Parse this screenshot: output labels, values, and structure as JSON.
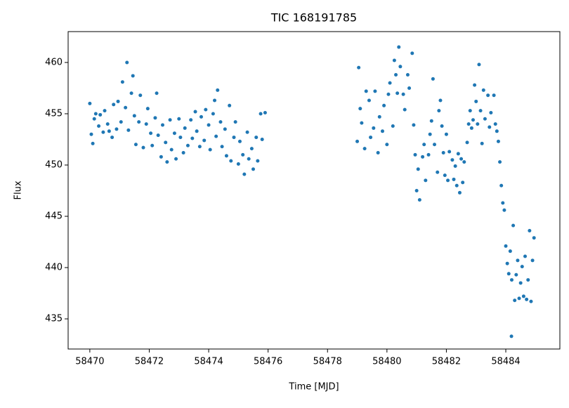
{
  "chart_data": {
    "type": "scatter",
    "title": "TIC 168191785",
    "x_label": "Time [MJD]",
    "y_label": "Flux",
    "color": "#1f77b4",
    "x": [
      58470.0,
      58470.05,
      58470.1,
      58470.15,
      58470.2,
      58470.3,
      58470.35,
      58470.45,
      58470.5,
      58470.6,
      58470.65,
      58470.75,
      58470.8,
      58470.9,
      58470.95,
      58471.05,
      58471.1,
      58471.2,
      58471.25,
      58471.3,
      58471.4,
      58471.45,
      58471.5,
      58471.55,
      58471.65,
      58471.7,
      58471.8,
      58471.9,
      58471.95,
      58472.05,
      58472.1,
      58472.2,
      58472.25,
      58472.3,
      58472.4,
      58472.45,
      58472.55,
      58472.6,
      58472.7,
      58472.75,
      58472.85,
      58472.9,
      58473.0,
      58473.05,
      58473.15,
      58473.2,
      58473.3,
      58473.4,
      58473.45,
      58473.55,
      58473.6,
      58473.7,
      58473.75,
      58473.85,
      58473.9,
      58474.0,
      58474.05,
      58474.15,
      58474.2,
      58474.25,
      58474.3,
      58474.4,
      58474.45,
      58474.55,
      58474.6,
      58474.7,
      58474.75,
      58474.85,
      58474.9,
      58475.0,
      58475.05,
      58475.15,
      58475.2,
      58475.3,
      58475.35,
      58475.45,
      58475.5,
      58475.6,
      58475.65,
      58475.75,
      58475.8,
      58475.9,
      58479.0,
      58479.05,
      58479.1,
      58479.15,
      58479.25,
      58479.3,
      58479.4,
      58479.45,
      58479.55,
      58479.6,
      58479.7,
      58479.75,
      58479.85,
      58479.9,
      58480.0,
      58480.05,
      58480.1,
      58480.2,
      58480.25,
      58480.3,
      58480.35,
      58480.4,
      58480.45,
      58480.55,
      58480.6,
      58480.7,
      58480.75,
      58480.85,
      58480.9,
      58480.95,
      58481.0,
      58481.05,
      58481.1,
      58481.2,
      58481.25,
      58481.3,
      58481.4,
      58481.45,
      58481.5,
      58481.55,
      58481.6,
      58481.7,
      58481.75,
      58481.8,
      58481.85,
      58481.9,
      58481.95,
      58482.0,
      58482.05,
      58482.1,
      58482.2,
      58482.25,
      58482.3,
      58482.35,
      58482.4,
      58482.45,
      58482.5,
      58482.55,
      58482.6,
      58482.7,
      58482.75,
      58482.8,
      58482.85,
      58482.9,
      58482.95,
      58483.0,
      58483.05,
      58483.1,
      58483.15,
      58483.2,
      58483.25,
      58483.3,
      58483.4,
      58483.45,
      58483.5,
      58483.6,
      58483.65,
      58483.7,
      58483.75,
      58483.8,
      58483.85,
      58483.9,
      58483.95,
      58484.0,
      58484.05,
      58484.1,
      58484.15,
      58484.2,
      58484.25,
      58484.3,
      58484.35,
      58484.4,
      58484.45,
      58484.5,
      58484.55,
      58484.6,
      58484.65,
      58484.7,
      58484.75,
      58484.8,
      58484.85,
      58484.9,
      58484.95,
      58484.19
    ],
    "values": [
      456.0,
      453.0,
      452.1,
      454.5,
      455.0,
      453.8,
      454.9,
      453.2,
      455.3,
      454.0,
      453.3,
      452.7,
      455.9,
      453.5,
      456.2,
      454.2,
      458.1,
      455.6,
      460.0,
      453.4,
      457.0,
      458.7,
      454.8,
      452.0,
      454.2,
      456.8,
      451.7,
      454.0,
      455.5,
      453.1,
      451.9,
      454.6,
      457.0,
      452.9,
      450.8,
      453.9,
      452.2,
      450.3,
      454.4,
      451.5,
      453.1,
      450.6,
      454.5,
      452.7,
      451.2,
      453.6,
      451.9,
      454.4,
      452.6,
      455.2,
      453.3,
      451.8,
      454.7,
      452.4,
      455.4,
      453.9,
      451.5,
      455.0,
      456.3,
      452.8,
      457.3,
      454.2,
      451.8,
      453.5,
      450.9,
      455.8,
      450.4,
      452.7,
      454.2,
      450.1,
      452.3,
      451.0,
      449.1,
      453.2,
      450.6,
      451.6,
      449.6,
      452.7,
      450.4,
      455.0,
      452.5,
      455.1,
      452.3,
      459.5,
      455.5,
      454.1,
      451.6,
      457.2,
      456.3,
      452.7,
      453.6,
      457.2,
      451.2,
      454.7,
      453.3,
      455.8,
      452.0,
      456.9,
      458.0,
      453.8,
      460.2,
      458.8,
      457.0,
      461.5,
      459.6,
      456.9,
      455.4,
      458.8,
      457.5,
      460.9,
      453.9,
      451.0,
      447.5,
      449.6,
      446.6,
      450.8,
      452.0,
      448.5,
      451.0,
      453.0,
      454.3,
      458.4,
      452.0,
      449.3,
      455.3,
      456.3,
      453.8,
      451.2,
      449.0,
      453.0,
      448.5,
      451.3,
      450.5,
      448.6,
      449.9,
      448.0,
      451.1,
      447.3,
      450.6,
      448.3,
      450.3,
      452.2,
      454.0,
      455.3,
      453.6,
      454.4,
      457.8,
      456.2,
      454.0,
      459.8,
      455.3,
      452.1,
      457.3,
      454.5,
      456.8,
      453.7,
      455.1,
      456.8,
      454.0,
      453.3,
      452.3,
      450.3,
      448.0,
      446.3,
      445.6,
      442.1,
      440.4,
      439.4,
      441.6,
      438.8,
      444.1,
      436.8,
      439.3,
      440.7,
      437.0,
      438.5,
      440.1,
      437.2,
      441.1,
      436.9,
      438.8,
      443.6,
      436.7,
      440.7,
      442.9,
      433.3
    ],
    "xlim": [
      58469.27,
      58485.82
    ],
    "ylim": [
      432.06,
      463.01
    ],
    "xticks": [
      58470,
      58472,
      58474,
      58476,
      58478,
      58480,
      58482,
      58484
    ],
    "yticks": [
      435,
      440,
      445,
      450,
      455,
      460
    ]
  }
}
